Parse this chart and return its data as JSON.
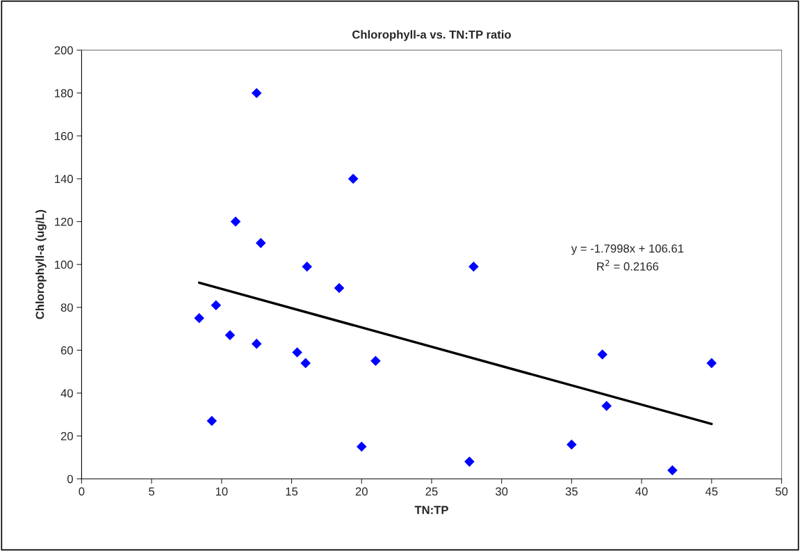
{
  "chart_data": {
    "type": "scatter",
    "title": "Chlorophyll-a vs. TN:TP ratio",
    "xlabel": "TN:TP",
    "ylabel": "Chlorophyll-a (ug/L)",
    "xlim": [
      0,
      50
    ],
    "xticks": [
      0,
      5,
      10,
      15,
      20,
      25,
      30,
      35,
      40,
      45,
      50
    ],
    "ylim": [
      0,
      200
    ],
    "yticks": [
      0,
      20,
      40,
      60,
      80,
      100,
      120,
      140,
      160,
      180,
      200
    ],
    "grid": false,
    "legend": false,
    "annotations": [
      "y = -1.7998x + 106.61",
      "R$^{2}$ = 0.2166"
    ],
    "series": [
      {
        "color": "#0000ff",
        "marker": "diamond",
        "x": [
          8.4,
          9.3,
          9.6,
          10.6,
          11,
          12.5,
          12.5,
          12.8,
          15.4,
          16,
          16.1,
          18.4,
          19.4,
          20,
          21,
          27.7,
          28,
          35,
          37.2,
          37.5,
          42.2,
          45
        ],
        "values": [
          75,
          27,
          81,
          67,
          120,
          180,
          63,
          110,
          59,
          54,
          99,
          89,
          140,
          15,
          55,
          8,
          99,
          16,
          58,
          34,
          4,
          54
        ]
      },
      {
        "type": "line",
        "color": "#000000",
        "marker": "none",
        "line_style": "solid",
        "x": [
          8.4,
          45
        ],
        "values": [
          91.5,
          25.6
        ]
      }
    ]
  }
}
